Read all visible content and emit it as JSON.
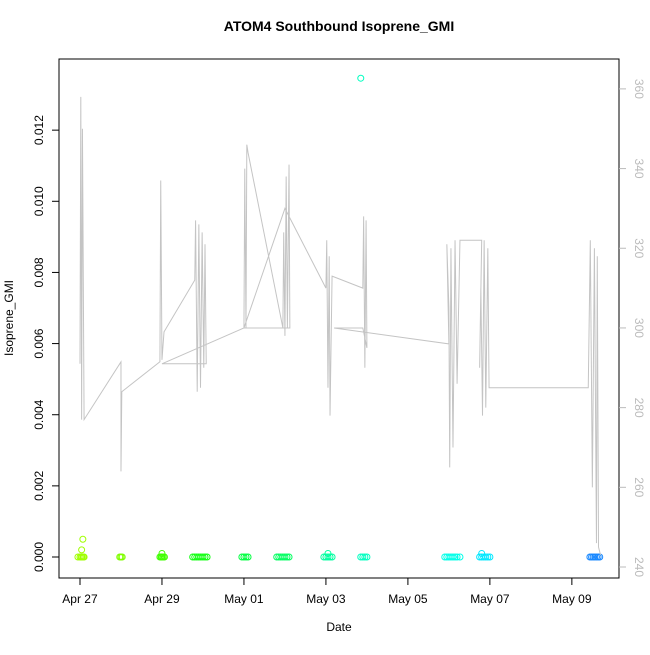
{
  "chart_data": {
    "type": "scatter",
    "title": "ATOM4 Southbound Isoprene_GMI",
    "xlabel": "Date",
    "ylabel": "Isoprene_GMI",
    "xlim": [
      -0.512,
      13.15
    ],
    "xticks": [
      {
        "value": 0,
        "label": "Apr 27"
      },
      {
        "value": 2,
        "label": "Apr 29"
      },
      {
        "value": 4,
        "label": "May 01"
      },
      {
        "value": 6,
        "label": "May 03"
      },
      {
        "value": 8,
        "label": "May 05"
      },
      {
        "value": 10,
        "label": "May 07"
      },
      {
        "value": 12,
        "label": "May 09"
      }
    ],
    "ylim": [
      -0.00059,
      0.014
    ],
    "yticks": [
      {
        "value": 0,
        "label": "0.000"
      },
      {
        "value": 0.002,
        "label": "0.002"
      },
      {
        "value": 0.004,
        "label": "0.004"
      },
      {
        "value": 0.006,
        "label": "0.006"
      },
      {
        "value": 0.008,
        "label": "0.008"
      },
      {
        "value": 0.01,
        "label": "0.010"
      },
      {
        "value": 0.012,
        "label": "0.012"
      }
    ],
    "y2lim": [
      237.24,
      367.5
    ],
    "y2ticks": [
      240,
      260,
      280,
      300,
      320,
      340,
      360
    ],
    "series": [
      {
        "color": "#a0ff00",
        "x": [
          -0.05,
          0.0,
          0.03,
          0.05,
          0.08,
          0.1,
          0.07,
          0.04
        ],
        "values": [
          0,
          0,
          0,
          0,
          0,
          0,
          0.0005,
          0.0002
        ]
      },
      {
        "color": "#80ff00",
        "x": [
          0.97,
          1.0,
          1.03
        ],
        "values": [
          0,
          0,
          0
        ]
      },
      {
        "color": "#40ff00",
        "x": [
          1.95,
          1.98,
          2.0,
          2.03,
          2.06,
          2.0
        ],
        "values": [
          0,
          0,
          0,
          0,
          0,
          0.0001
        ]
      },
      {
        "color": "#10ff10",
        "x": [
          2.75,
          2.8,
          2.85,
          2.9,
          2.95,
          3.0,
          3.05,
          3.1
        ],
        "values": [
          0,
          0,
          0,
          0,
          0,
          0,
          0,
          0
        ]
      },
      {
        "color": "#00ff40",
        "x": [
          3.95,
          4.0,
          4.05,
          4.1
        ],
        "values": [
          0,
          0,
          0,
          0
        ]
      },
      {
        "color": "#00ff60",
        "x": [
          4.8,
          4.85,
          4.9,
          4.95,
          5.0,
          5.05,
          5.1
        ],
        "values": [
          0,
          0,
          0,
          0,
          0,
          0,
          0
        ]
      },
      {
        "color": "#00ffa0",
        "x": [
          5.95,
          6.0,
          6.05,
          6.1,
          6.15,
          6.05
        ],
        "values": [
          0,
          0,
          0,
          0,
          0,
          0.0001
        ]
      },
      {
        "color": "#00ffc0",
        "x": [
          6.85,
          6.9,
          6.95,
          7.0,
          6.85
        ],
        "values": [
          0,
          0,
          0,
          0,
          0.01346
        ]
      },
      {
        "color": "#00ffe8",
        "x": [
          8.9,
          8.95,
          9.0,
          9.05,
          9.1,
          9.15,
          9.2,
          9.27
        ],
        "values": [
          0,
          0,
          0,
          0,
          0,
          0,
          0,
          0
        ]
      },
      {
        "color": "#00e8ff",
        "x": [
          9.75,
          9.8,
          9.85,
          9.9,
          9.95,
          10.0,
          9.8
        ],
        "values": [
          0,
          0,
          0,
          0,
          0,
          0,
          0.0001
        ]
      },
      {
        "color": "#1888ff",
        "x": [
          12.44,
          12.48,
          12.52,
          12.56,
          12.6,
          12.64,
          12.68
        ],
        "values": [
          0,
          0,
          0,
          0,
          0,
          0,
          0
        ]
      },
      {
        "type": "line",
        "axis": "y2",
        "color": "#c4c4c4",
        "x": [
          0,
          0.02,
          0.04,
          0.06,
          0.1,
          1,
          1.0,
          1.02,
          1.95,
          1.97,
          2.0,
          2.05,
          2.8,
          2.82,
          2.86,
          2.9,
          2.94,
          2.98,
          3.02,
          3.05,
          3.08,
          2.0,
          4.0,
          4.02,
          4.05,
          4.07,
          4.1,
          4.95,
          4.97,
          5.0,
          5.03,
          5.06,
          5.1,
          5.12,
          4.0,
          5.0,
          6.0,
          6.02,
          6.05,
          6.08,
          6.1,
          6.15,
          6.9,
          6.92,
          6.95,
          6.98,
          7.0,
          6.9,
          6.2,
          9.0,
          8.95,
          9.0,
          9.02,
          9.05,
          9.1,
          9.15,
          9.2,
          9.27,
          9.8,
          9.75,
          9.78,
          9.82,
          9.86,
          9.9,
          9.95,
          9.98,
          12.4,
          12.45,
          12.5,
          12.55,
          12.6,
          12.62,
          12.65,
          12.7
        ],
        "values": [
          291,
          358,
          277,
          350,
          277,
          291.5,
          264,
          284,
          291.5,
          337,
          292,
          299,
          312,
          327,
          284,
          326,
          285,
          324,
          290,
          321,
          291,
          291,
          300,
          340,
          300,
          346,
          344,
          300,
          324,
          298,
          338,
          300,
          341,
          300,
          300,
          330,
          310,
          322,
          285,
          318,
          278,
          313,
          310,
          328,
          290,
          327,
          295,
          300,
          300,
          296,
          321,
          305,
          265,
          320,
          270,
          322,
          286,
          322,
          322,
          290,
          310,
          278,
          322,
          280,
          320,
          285,
          285,
          322,
          260,
          320,
          246,
          318,
          245,
          243
        ]
      }
    ]
  }
}
